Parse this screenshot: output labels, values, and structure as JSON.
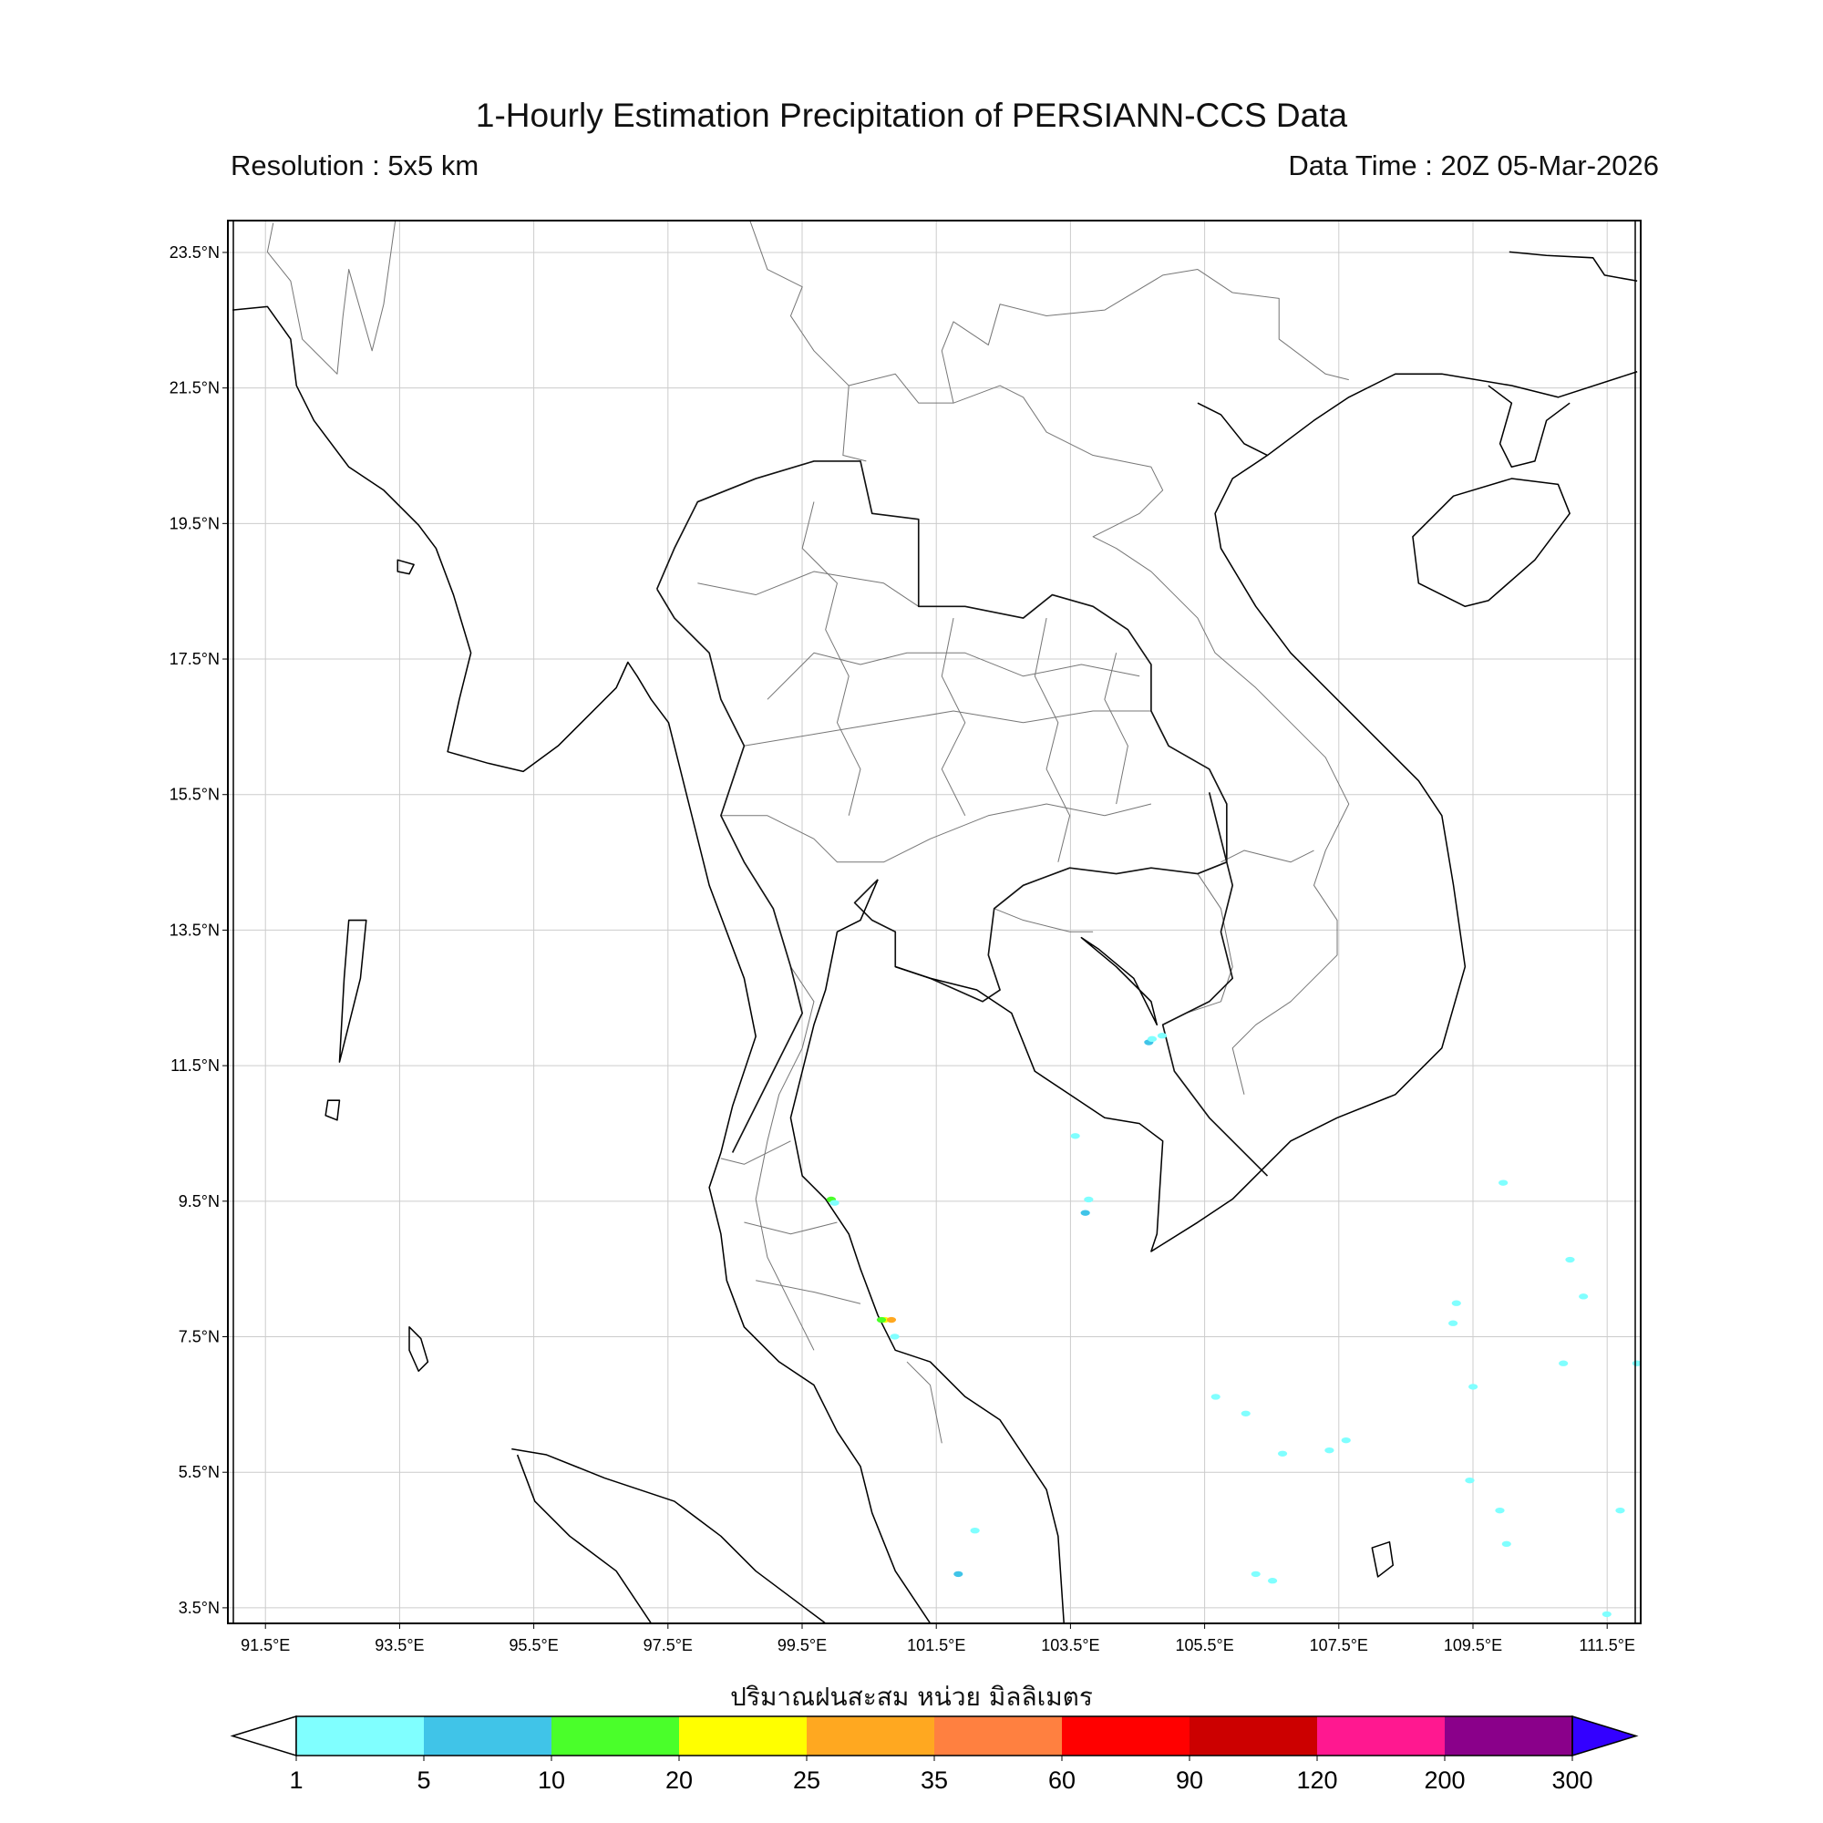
{
  "title": "1-Hourly Estimation Precipitation of PERSIANN-CCS Data",
  "resolution": "Resolution : 5x5 km",
  "data_time": "Data Time : 20Z 05-Mar-2026",
  "chart_data": {
    "type": "map",
    "title": "1-Hourly Estimation Precipitation of PERSIANN-CCS Data",
    "xlabel": "ปริมาณฝนสะสม หน่วย มิลลิเมตร",
    "xlim": [
      90.94,
      112.0
    ],
    "ylim": [
      3.27,
      23.97
    ],
    "grid": true,
    "x_ticks": [
      "91.5°E",
      "93.5°E",
      "95.5°E",
      "97.5°E",
      "99.5°E",
      "101.5°E",
      "103.5°E",
      "105.5°E",
      "107.5°E",
      "109.5°E",
      "111.5°E"
    ],
    "x_tick_values": [
      91.5,
      93.5,
      95.5,
      97.5,
      99.5,
      101.5,
      103.5,
      105.5,
      107.5,
      109.5,
      111.5
    ],
    "y_ticks": [
      "23.5°N",
      "21.5°N",
      "19.5°N",
      "17.5°N",
      "15.5°N",
      "13.5°N",
      "11.5°N",
      "9.5°N",
      "7.5°N",
      "5.5°N",
      "3.5°N"
    ],
    "y_tick_values": [
      23.5,
      21.5,
      19.5,
      17.5,
      15.5,
      13.5,
      11.5,
      9.5,
      7.5,
      5.5,
      3.5
    ],
    "colorbar": {
      "levels": [
        "1",
        "5",
        "10",
        "20",
        "25",
        "35",
        "60",
        "90",
        "120",
        "200",
        "300"
      ],
      "colors": [
        "#80ffff",
        "#40c4e8",
        "#4aff2a",
        "#ffff00",
        "#ffa820",
        "#ff8040",
        "#ff0000",
        "#cc0000",
        "#ff1890",
        "#8a008a"
      ],
      "under_color": "#ffffff",
      "over_color": "#3300ff",
      "extend": "both"
    },
    "precip_cells": [
      {
        "lon": 104.7,
        "lat": 11.7,
        "level": 1
      },
      {
        "lon": 104.75,
        "lat": 11.75,
        "level": 0
      },
      {
        "lon": 104.9,
        "lat": 11.8,
        "level": 0
      },
      {
        "lon": 103.6,
        "lat": 10.3,
        "level": 0
      },
      {
        "lon": 103.8,
        "lat": 9.35,
        "level": 0
      },
      {
        "lon": 103.75,
        "lat": 9.15,
        "level": 1
      },
      {
        "lon": 99.95,
        "lat": 9.35,
        "level": 2
      },
      {
        "lon": 100.0,
        "lat": 9.3,
        "level": 0
      },
      {
        "lon": 100.75,
        "lat": 7.55,
        "level": 3
      },
      {
        "lon": 100.85,
        "lat": 7.55,
        "level": 4
      },
      {
        "lon": 100.7,
        "lat": 7.55,
        "level": 2
      },
      {
        "lon": 100.9,
        "lat": 7.3,
        "level": 0
      },
      {
        "lon": 105.7,
        "lat": 6.4,
        "level": 0
      },
      {
        "lon": 106.15,
        "lat": 6.15,
        "level": 0
      },
      {
        "lon": 106.7,
        "lat": 5.55,
        "level": 0
      },
      {
        "lon": 107.4,
        "lat": 5.6,
        "level": 0
      },
      {
        "lon": 107.65,
        "lat": 5.75,
        "level": 0
      },
      {
        "lon": 109.3,
        "lat": 7.8,
        "level": 0
      },
      {
        "lon": 109.25,
        "lat": 7.5,
        "level": 0
      },
      {
        "lon": 109.55,
        "lat": 6.55,
        "level": 0
      },
      {
        "lon": 109.5,
        "lat": 5.15,
        "level": 0
      },
      {
        "lon": 109.95,
        "lat": 4.7,
        "level": 0
      },
      {
        "lon": 110.05,
        "lat": 4.2,
        "level": 0
      },
      {
        "lon": 110.0,
        "lat": 9.6,
        "level": 0
      },
      {
        "lon": 110.9,
        "lat": 6.9,
        "level": 0
      },
      {
        "lon": 111.75,
        "lat": 4.7,
        "level": 0
      },
      {
        "lon": 111.55,
        "lat": 3.15,
        "level": 0
      },
      {
        "lon": 112.0,
        "lat": 6.9,
        "level": 0
      },
      {
        "lon": 102.1,
        "lat": 4.4,
        "level": 0
      },
      {
        "lon": 101.85,
        "lat": 3.75,
        "level": 1
      },
      {
        "lon": 106.3,
        "lat": 3.75,
        "level": 0
      },
      {
        "lon": 106.55,
        "lat": 3.65,
        "level": 0
      },
      {
        "lon": 111.0,
        "lat": 8.45,
        "level": 0
      },
      {
        "lon": 111.2,
        "lat": 7.9,
        "level": 0
      }
    ]
  }
}
